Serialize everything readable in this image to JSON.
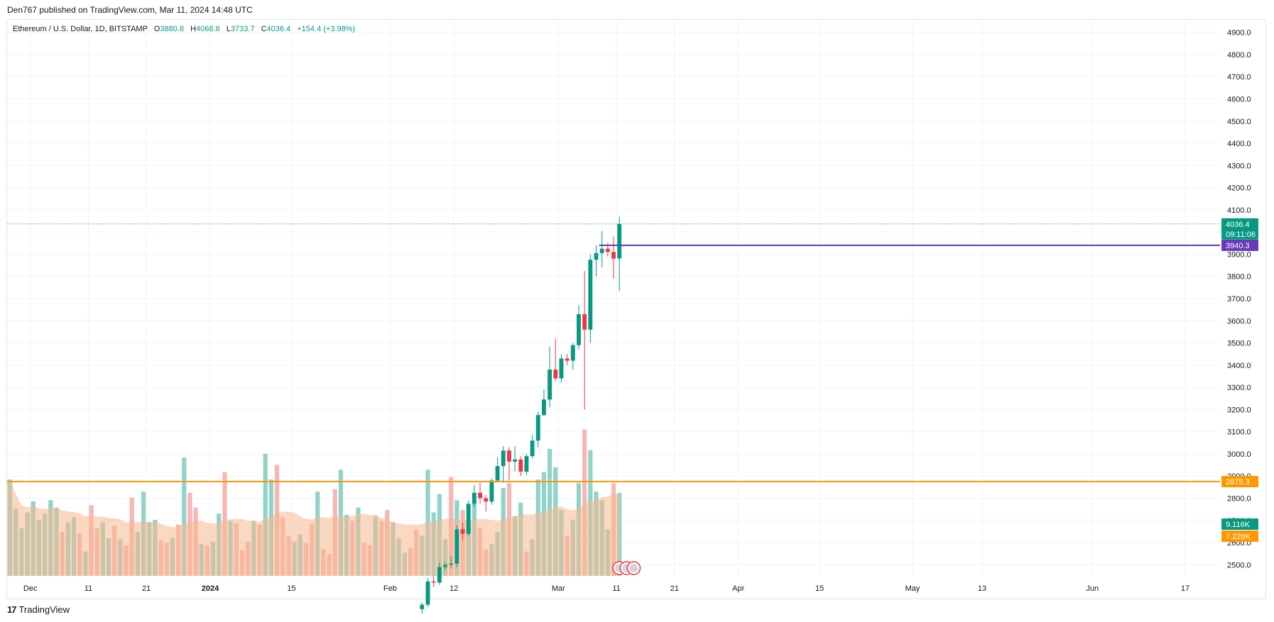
{
  "header": {
    "published": "Den767 published on TradingView.com, Mar 11, 2024 14:48 UTC"
  },
  "legend": {
    "symbol": "Ethereum / U.S. Dollar, 1D, BITSTAMP",
    "o_label": "O",
    "o_value": "3880.8",
    "h_label": "H",
    "h_value": "4068.8",
    "l_label": "L",
    "l_value": "3733.7",
    "c_label": "C",
    "c_value": "4036.4",
    "change": "+154.4 (+3.98%)"
  },
  "footer": {
    "brand": "TradingView",
    "logo": "17"
  },
  "colors": {
    "up": "#089981",
    "down": "#f23645",
    "vol_up": "#7fcbc0",
    "vol_down": "#f7a9a7",
    "vol_ma": "#f7b88e",
    "purple": "#673ab7",
    "orange": "#ff9800",
    "grid": "#f0f3fa"
  },
  "chart_data": {
    "type": "candlestick",
    "title": "Ethereum / U.S. Dollar, 1D, BITSTAMP",
    "y_axis": {
      "min": 2450,
      "max": 4950,
      "ticks": [
        "2500.0",
        "2600.0",
        "2700.0",
        "2800.0",
        "2900.0",
        "3000.0",
        "3100.0",
        "3200.0",
        "3300.0",
        "3400.0",
        "3500.0",
        "3600.0",
        "3700.0",
        "3800.0",
        "3900.0",
        "4000.0",
        "4100.0",
        "4200.0",
        "4300.0",
        "4400.0",
        "4500.0",
        "4600.0",
        "4700.0",
        "4800.0",
        "4900.0"
      ]
    },
    "x_axis": {
      "start": "2023-11-27",
      "end": "2024-06-23",
      "ticks": [
        {
          "label": "Dec",
          "date": "2023-12-01",
          "bold": false
        },
        {
          "label": "11",
          "date": "2023-12-11",
          "bold": false
        },
        {
          "label": "21",
          "date": "2023-12-21",
          "bold": false
        },
        {
          "label": "2024",
          "date": "2024-01-01",
          "bold": true
        },
        {
          "label": "15",
          "date": "2024-01-15",
          "bold": false
        },
        {
          "label": "Feb",
          "date": "2024-02-01",
          "bold": false
        },
        {
          "label": "12",
          "date": "2024-02-12",
          "bold": false
        },
        {
          "label": "Mar",
          "date": "2024-03-01",
          "bold": false
        },
        {
          "label": "11",
          "date": "2024-03-11",
          "bold": false
        },
        {
          "label": "21",
          "date": "2024-03-21",
          "bold": false
        },
        {
          "label": "Apr",
          "date": "2024-04-01",
          "bold": false
        },
        {
          "label": "15",
          "date": "2024-04-15",
          "bold": false
        },
        {
          "label": "May",
          "date": "2024-05-01",
          "bold": false
        },
        {
          "label": "13",
          "date": "2024-05-13",
          "bold": false
        },
        {
          "label": "Jun",
          "date": "2024-06-01",
          "bold": false
        },
        {
          "label": "17",
          "date": "2024-06-17",
          "bold": false
        }
      ]
    },
    "price_labels": [
      {
        "text": "4036.4",
        "sub": "09:11:06",
        "value": 4036.4,
        "kind": "last"
      },
      {
        "text": "3940.3",
        "value": 3940.3,
        "kind": "purple"
      },
      {
        "text": "2875.3",
        "value": 2875.3,
        "kind": "orange"
      }
    ],
    "volume_labels": [
      {
        "text": "9.116K",
        "kind": "vol"
      },
      {
        "text": "7.226K",
        "kind": "vol_ma"
      }
    ],
    "horizontal_lines": [
      {
        "value": 3940.3,
        "color": "purple",
        "from": "2024-03-08"
      },
      {
        "value": 2875.3,
        "color": "orange",
        "from": "2023-11-27"
      }
    ],
    "last_price": 4036.4,
    "candles": [
      {
        "d": "2024-02-06",
        "o": 2300,
        "h": 2330,
        "l": 2280,
        "c": 2320
      },
      {
        "d": "2024-02-07",
        "o": 2320,
        "h": 2440,
        "l": 2310,
        "c": 2425
      },
      {
        "d": "2024-02-08",
        "o": 2425,
        "h": 2450,
        "l": 2400,
        "c": 2420
      },
      {
        "d": "2024-02-09",
        "o": 2420,
        "h": 2510,
        "l": 2410,
        "c": 2490
      },
      {
        "d": "2024-02-10",
        "o": 2490,
        "h": 2510,
        "l": 2475,
        "c": 2500
      },
      {
        "d": "2024-02-11",
        "o": 2500,
        "h": 2540,
        "l": 2485,
        "c": 2505
      },
      {
        "d": "2024-02-12",
        "o": 2505,
        "h": 2680,
        "l": 2490,
        "c": 2660
      },
      {
        "d": "2024-02-13",
        "o": 2660,
        "h": 2690,
        "l": 2610,
        "c": 2640
      },
      {
        "d": "2024-02-14",
        "o": 2640,
        "h": 2790,
        "l": 2630,
        "c": 2775
      },
      {
        "d": "2024-02-15",
        "o": 2775,
        "h": 2860,
        "l": 2760,
        "c": 2825
      },
      {
        "d": "2024-02-16",
        "o": 2825,
        "h": 2870,
        "l": 2775,
        "c": 2800
      },
      {
        "d": "2024-02-17",
        "o": 2800,
        "h": 2815,
        "l": 2740,
        "c": 2785
      },
      {
        "d": "2024-02-18",
        "o": 2785,
        "h": 2890,
        "l": 2770,
        "c": 2880
      },
      {
        "d": "2024-02-19",
        "o": 2880,
        "h": 2985,
        "l": 2870,
        "c": 2945
      },
      {
        "d": "2024-02-20",
        "o": 2945,
        "h": 3035,
        "l": 2870,
        "c": 3015
      },
      {
        "d": "2024-02-21",
        "o": 3015,
        "h": 3030,
        "l": 2880,
        "c": 2965
      },
      {
        "d": "2024-02-22",
        "o": 2965,
        "h": 3035,
        "l": 2920,
        "c": 2975
      },
      {
        "d": "2024-02-23",
        "o": 2975,
        "h": 2990,
        "l": 2900,
        "c": 2920
      },
      {
        "d": "2024-02-24",
        "o": 2920,
        "h": 3000,
        "l": 2905,
        "c": 2990
      },
      {
        "d": "2024-02-25",
        "o": 2990,
        "h": 3085,
        "l": 2980,
        "c": 3060
      },
      {
        "d": "2024-02-26",
        "o": 3060,
        "h": 3190,
        "l": 3030,
        "c": 3175
      },
      {
        "d": "2024-02-27",
        "o": 3175,
        "h": 3290,
        "l": 3170,
        "c": 3245
      },
      {
        "d": "2024-02-28",
        "o": 3245,
        "h": 3485,
        "l": 3210,
        "c": 3380
      },
      {
        "d": "2024-02-29",
        "o": 3380,
        "h": 3520,
        "l": 3330,
        "c": 3340
      },
      {
        "d": "2024-03-01",
        "o": 3340,
        "h": 3450,
        "l": 3320,
        "c": 3430
      },
      {
        "d": "2024-03-02",
        "o": 3430,
        "h": 3450,
        "l": 3400,
        "c": 3420
      },
      {
        "d": "2024-03-03",
        "o": 3420,
        "h": 3500,
        "l": 3380,
        "c": 3490
      },
      {
        "d": "2024-03-04",
        "o": 3490,
        "h": 3670,
        "l": 3470,
        "c": 3630
      },
      {
        "d": "2024-03-05",
        "o": 3630,
        "h": 3825,
        "l": 3200,
        "c": 3560
      },
      {
        "d": "2024-03-06",
        "o": 3560,
        "h": 3900,
        "l": 3500,
        "c": 3875
      },
      {
        "d": "2024-03-07",
        "o": 3875,
        "h": 3940,
        "l": 3800,
        "c": 3905
      },
      {
        "d": "2024-03-08",
        "o": 3905,
        "h": 4005,
        "l": 3840,
        "c": 3925
      },
      {
        "d": "2024-03-09",
        "o": 3925,
        "h": 3950,
        "l": 3890,
        "c": 3910
      },
      {
        "d": "2024-03-10",
        "o": 3910,
        "h": 3980,
        "l": 3790,
        "c": 3880
      },
      {
        "d": "2024-03-11",
        "o": 3880.8,
        "h": 4068.8,
        "l": 3733.7,
        "c": 4036.4
      }
    ],
    "volume_scale": 15000,
    "volume": [
      {
        "d": "2023-11-27",
        "v": 7.9,
        "up": true
      },
      {
        "d": "2023-11-28",
        "v": 5.5,
        "up": true
      },
      {
        "d": "2023-11-29",
        "v": 3.9,
        "up": true
      },
      {
        "d": "2023-11-30",
        "v": 5.2,
        "up": true
      },
      {
        "d": "2023-12-01",
        "v": 6.1,
        "up": true
      },
      {
        "d": "2023-12-02",
        "v": 4.6,
        "up": true
      },
      {
        "d": "2023-12-03",
        "v": 5.1,
        "up": true
      },
      {
        "d": "2023-12-04",
        "v": 6.2,
        "up": true
      },
      {
        "d": "2023-12-05",
        "v": 5.6,
        "up": true
      },
      {
        "d": "2023-12-06",
        "v": 3.6,
        "up": false
      },
      {
        "d": "2023-12-07",
        "v": 4.4,
        "up": true
      },
      {
        "d": "2023-12-08",
        "v": 4.8,
        "up": true
      },
      {
        "d": "2023-12-09",
        "v": 3.5,
        "up": false
      },
      {
        "d": "2023-12-10",
        "v": 2.0,
        "up": true
      },
      {
        "d": "2023-12-11",
        "v": 5.8,
        "up": false
      },
      {
        "d": "2023-12-12",
        "v": 3.9,
        "up": false
      },
      {
        "d": "2023-12-13",
        "v": 4.4,
        "up": true
      },
      {
        "d": "2023-12-14",
        "v": 3.1,
        "up": true
      },
      {
        "d": "2023-12-15",
        "v": 4.1,
        "up": false
      },
      {
        "d": "2023-12-16",
        "v": 3.0,
        "up": true
      },
      {
        "d": "2023-12-17",
        "v": 2.5,
        "up": false
      },
      {
        "d": "2023-12-18",
        "v": 6.4,
        "up": false
      },
      {
        "d": "2023-12-19",
        "v": 3.6,
        "up": true
      },
      {
        "d": "2023-12-20",
        "v": 6.9,
        "up": true
      },
      {
        "d": "2023-12-21",
        "v": 4.4,
        "up": true
      },
      {
        "d": "2023-12-22",
        "v": 4.6,
        "up": true
      },
      {
        "d": "2023-12-23",
        "v": 2.9,
        "up": false
      },
      {
        "d": "2023-12-24",
        "v": 2.7,
        "up": false
      },
      {
        "d": "2023-12-25",
        "v": 3.1,
        "up": true
      },
      {
        "d": "2023-12-26",
        "v": 4.2,
        "up": false
      },
      {
        "d": "2023-12-27",
        "v": 9.7,
        "up": true
      },
      {
        "d": "2023-12-28",
        "v": 6.8,
        "up": false
      },
      {
        "d": "2023-12-29",
        "v": 5.6,
        "up": false
      },
      {
        "d": "2023-12-30",
        "v": 2.6,
        "up": true
      },
      {
        "d": "2023-12-31",
        "v": 2.5,
        "up": false
      },
      {
        "d": "2024-01-01",
        "v": 2.8,
        "up": true
      },
      {
        "d": "2024-01-02",
        "v": 5.1,
        "up": true
      },
      {
        "d": "2024-01-03",
        "v": 8.5,
        "up": false
      },
      {
        "d": "2024-01-04",
        "v": 4.5,
        "up": true
      },
      {
        "d": "2024-01-05",
        "v": 4.3,
        "up": false
      },
      {
        "d": "2024-01-06",
        "v": 2.1,
        "up": false
      },
      {
        "d": "2024-01-07",
        "v": 2.8,
        "up": false
      },
      {
        "d": "2024-01-08",
        "v": 4.5,
        "up": true
      },
      {
        "d": "2024-01-09",
        "v": 4.2,
        "up": false
      },
      {
        "d": "2024-01-10",
        "v": 10.0,
        "up": true
      },
      {
        "d": "2024-01-11",
        "v": 7.9,
        "up": true
      },
      {
        "d": "2024-01-12",
        "v": 9.1,
        "up": false
      },
      {
        "d": "2024-01-13",
        "v": 4.8,
        "up": false
      },
      {
        "d": "2024-01-14",
        "v": 3.3,
        "up": false
      },
      {
        "d": "2024-01-15",
        "v": 2.8,
        "up": true
      },
      {
        "d": "2024-01-16",
        "v": 3.4,
        "up": true
      },
      {
        "d": "2024-01-17",
        "v": 2.7,
        "up": false
      },
      {
        "d": "2024-01-18",
        "v": 4.3,
        "up": false
      },
      {
        "d": "2024-01-19",
        "v": 6.9,
        "up": true
      },
      {
        "d": "2024-01-20",
        "v": 2.2,
        "up": false
      },
      {
        "d": "2024-01-21",
        "v": 1.8,
        "up": false
      },
      {
        "d": "2024-01-22",
        "v": 7.1,
        "up": false
      },
      {
        "d": "2024-01-23",
        "v": 8.7,
        "up": true
      },
      {
        "d": "2024-01-24",
        "v": 5.0,
        "up": true
      },
      {
        "d": "2024-01-25",
        "v": 4.5,
        "up": false
      },
      {
        "d": "2024-01-26",
        "v": 5.6,
        "up": true
      },
      {
        "d": "2024-01-27",
        "v": 2.7,
        "up": false
      },
      {
        "d": "2024-01-28",
        "v": 2.5,
        "up": false
      },
      {
        "d": "2024-01-29",
        "v": 4.9,
        "up": true
      },
      {
        "d": "2024-01-30",
        "v": 4.5,
        "up": false
      },
      {
        "d": "2024-01-31",
        "v": 5.4,
        "up": false
      },
      {
        "d": "2024-02-01",
        "v": 4.4,
        "up": true
      },
      {
        "d": "2024-02-02",
        "v": 3.1,
        "up": true
      },
      {
        "d": "2024-02-03",
        "v": 1.9,
        "up": true
      },
      {
        "d": "2024-02-04",
        "v": 2.3,
        "up": false
      },
      {
        "d": "2024-02-05",
        "v": 3.8,
        "up": false
      },
      {
        "d": "2024-02-06",
        "v": 3.3,
        "up": true
      },
      {
        "d": "2024-02-07",
        "v": 8.7,
        "up": true
      },
      {
        "d": "2024-02-08",
        "v": 5.2,
        "up": true
      },
      {
        "d": "2024-02-09",
        "v": 6.7,
        "up": true
      },
      {
        "d": "2024-02-10",
        "v": 3.0,
        "up": true
      },
      {
        "d": "2024-02-11",
        "v": 8.1,
        "up": false
      },
      {
        "d": "2024-02-12",
        "v": 6.2,
        "up": true
      },
      {
        "d": "2024-02-13",
        "v": 5.4,
        "up": false
      },
      {
        "d": "2024-02-14",
        "v": 4.5,
        "up": true
      },
      {
        "d": "2024-02-15",
        "v": 5.9,
        "up": true
      },
      {
        "d": "2024-02-16",
        "v": 3.9,
        "up": false
      },
      {
        "d": "2024-02-17",
        "v": 2.2,
        "up": false
      },
      {
        "d": "2024-02-18",
        "v": 2.6,
        "up": true
      },
      {
        "d": "2024-02-19",
        "v": 3.6,
        "up": true
      },
      {
        "d": "2024-02-20",
        "v": 7.2,
        "up": true
      },
      {
        "d": "2024-02-21",
        "v": 7.6,
        "up": false
      },
      {
        "d": "2024-02-22",
        "v": 4.9,
        "up": true
      },
      {
        "d": "2024-02-23",
        "v": 6.0,
        "up": true
      },
      {
        "d": "2024-02-24",
        "v": 2.0,
        "up": false
      },
      {
        "d": "2024-02-25",
        "v": 3.0,
        "up": true
      },
      {
        "d": "2024-02-26",
        "v": 7.9,
        "up": true
      },
      {
        "d": "2024-02-27",
        "v": 8.5,
        "up": true
      },
      {
        "d": "2024-02-28",
        "v": 10.4,
        "up": true
      },
      {
        "d": "2024-02-29",
        "v": 8.9,
        "up": true
      },
      {
        "d": "2024-03-01",
        "v": 5.4,
        "up": true
      },
      {
        "d": "2024-03-02",
        "v": 3.3,
        "up": false
      },
      {
        "d": "2024-03-03",
        "v": 4.6,
        "up": true
      },
      {
        "d": "2024-03-04",
        "v": 7.6,
        "up": true
      },
      {
        "d": "2024-03-05",
        "v": 12.0,
        "up": false
      },
      {
        "d": "2024-03-06",
        "v": 10.3,
        "up": true
      },
      {
        "d": "2024-03-07",
        "v": 6.9,
        "up": true
      },
      {
        "d": "2024-03-08",
        "v": 6.2,
        "up": true
      },
      {
        "d": "2024-03-09",
        "v": 3.8,
        "up": true
      },
      {
        "d": "2024-03-10",
        "v": 7.6,
        "up": false
      },
      {
        "d": "2024-03-11",
        "v": 6.8,
        "up": true
      }
    ]
  }
}
